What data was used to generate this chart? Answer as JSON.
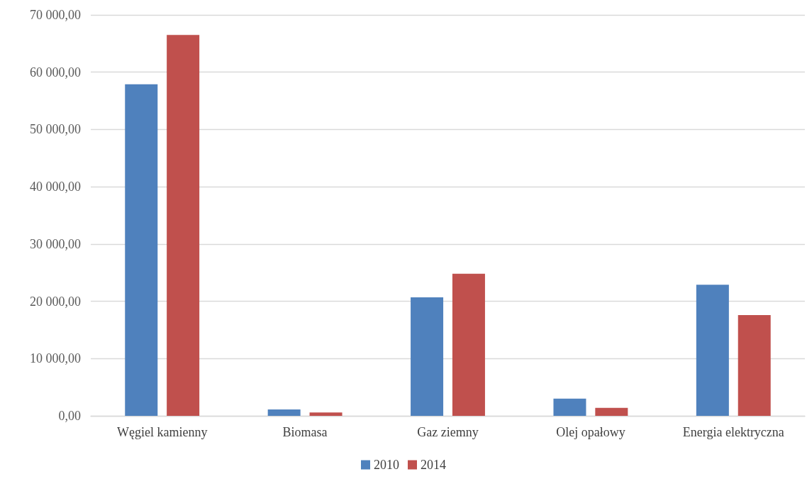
{
  "chart_data": {
    "type": "bar",
    "categories": [
      "Węgiel kamienny",
      "Biomasa",
      "Gaz ziemny",
      "Olej opałowy",
      "Energia elektryczna"
    ],
    "series": [
      {
        "name": "2010",
        "color": "#4f81bd",
        "values": [
          57900,
          1100,
          20700,
          3000,
          22900
        ]
      },
      {
        "name": "2014",
        "color": "#c0504d",
        "values": [
          66500,
          600,
          24800,
          1400,
          17600
        ]
      }
    ],
    "ylim": [
      0,
      70000
    ],
    "yticks": [
      {
        "value": 0,
        "label": "0,00"
      },
      {
        "value": 10000,
        "label": "10 000,00"
      },
      {
        "value": 20000,
        "label": "20 000,00"
      },
      {
        "value": 30000,
        "label": "30 000,00"
      },
      {
        "value": 40000,
        "label": "40 000,00"
      },
      {
        "value": 50000,
        "label": "50 000,00"
      },
      {
        "value": 60000,
        "label": "60 000,00"
      },
      {
        "value": 70000,
        "label": "70 000,00"
      }
    ],
    "grid": "y",
    "legend": "bottom"
  }
}
